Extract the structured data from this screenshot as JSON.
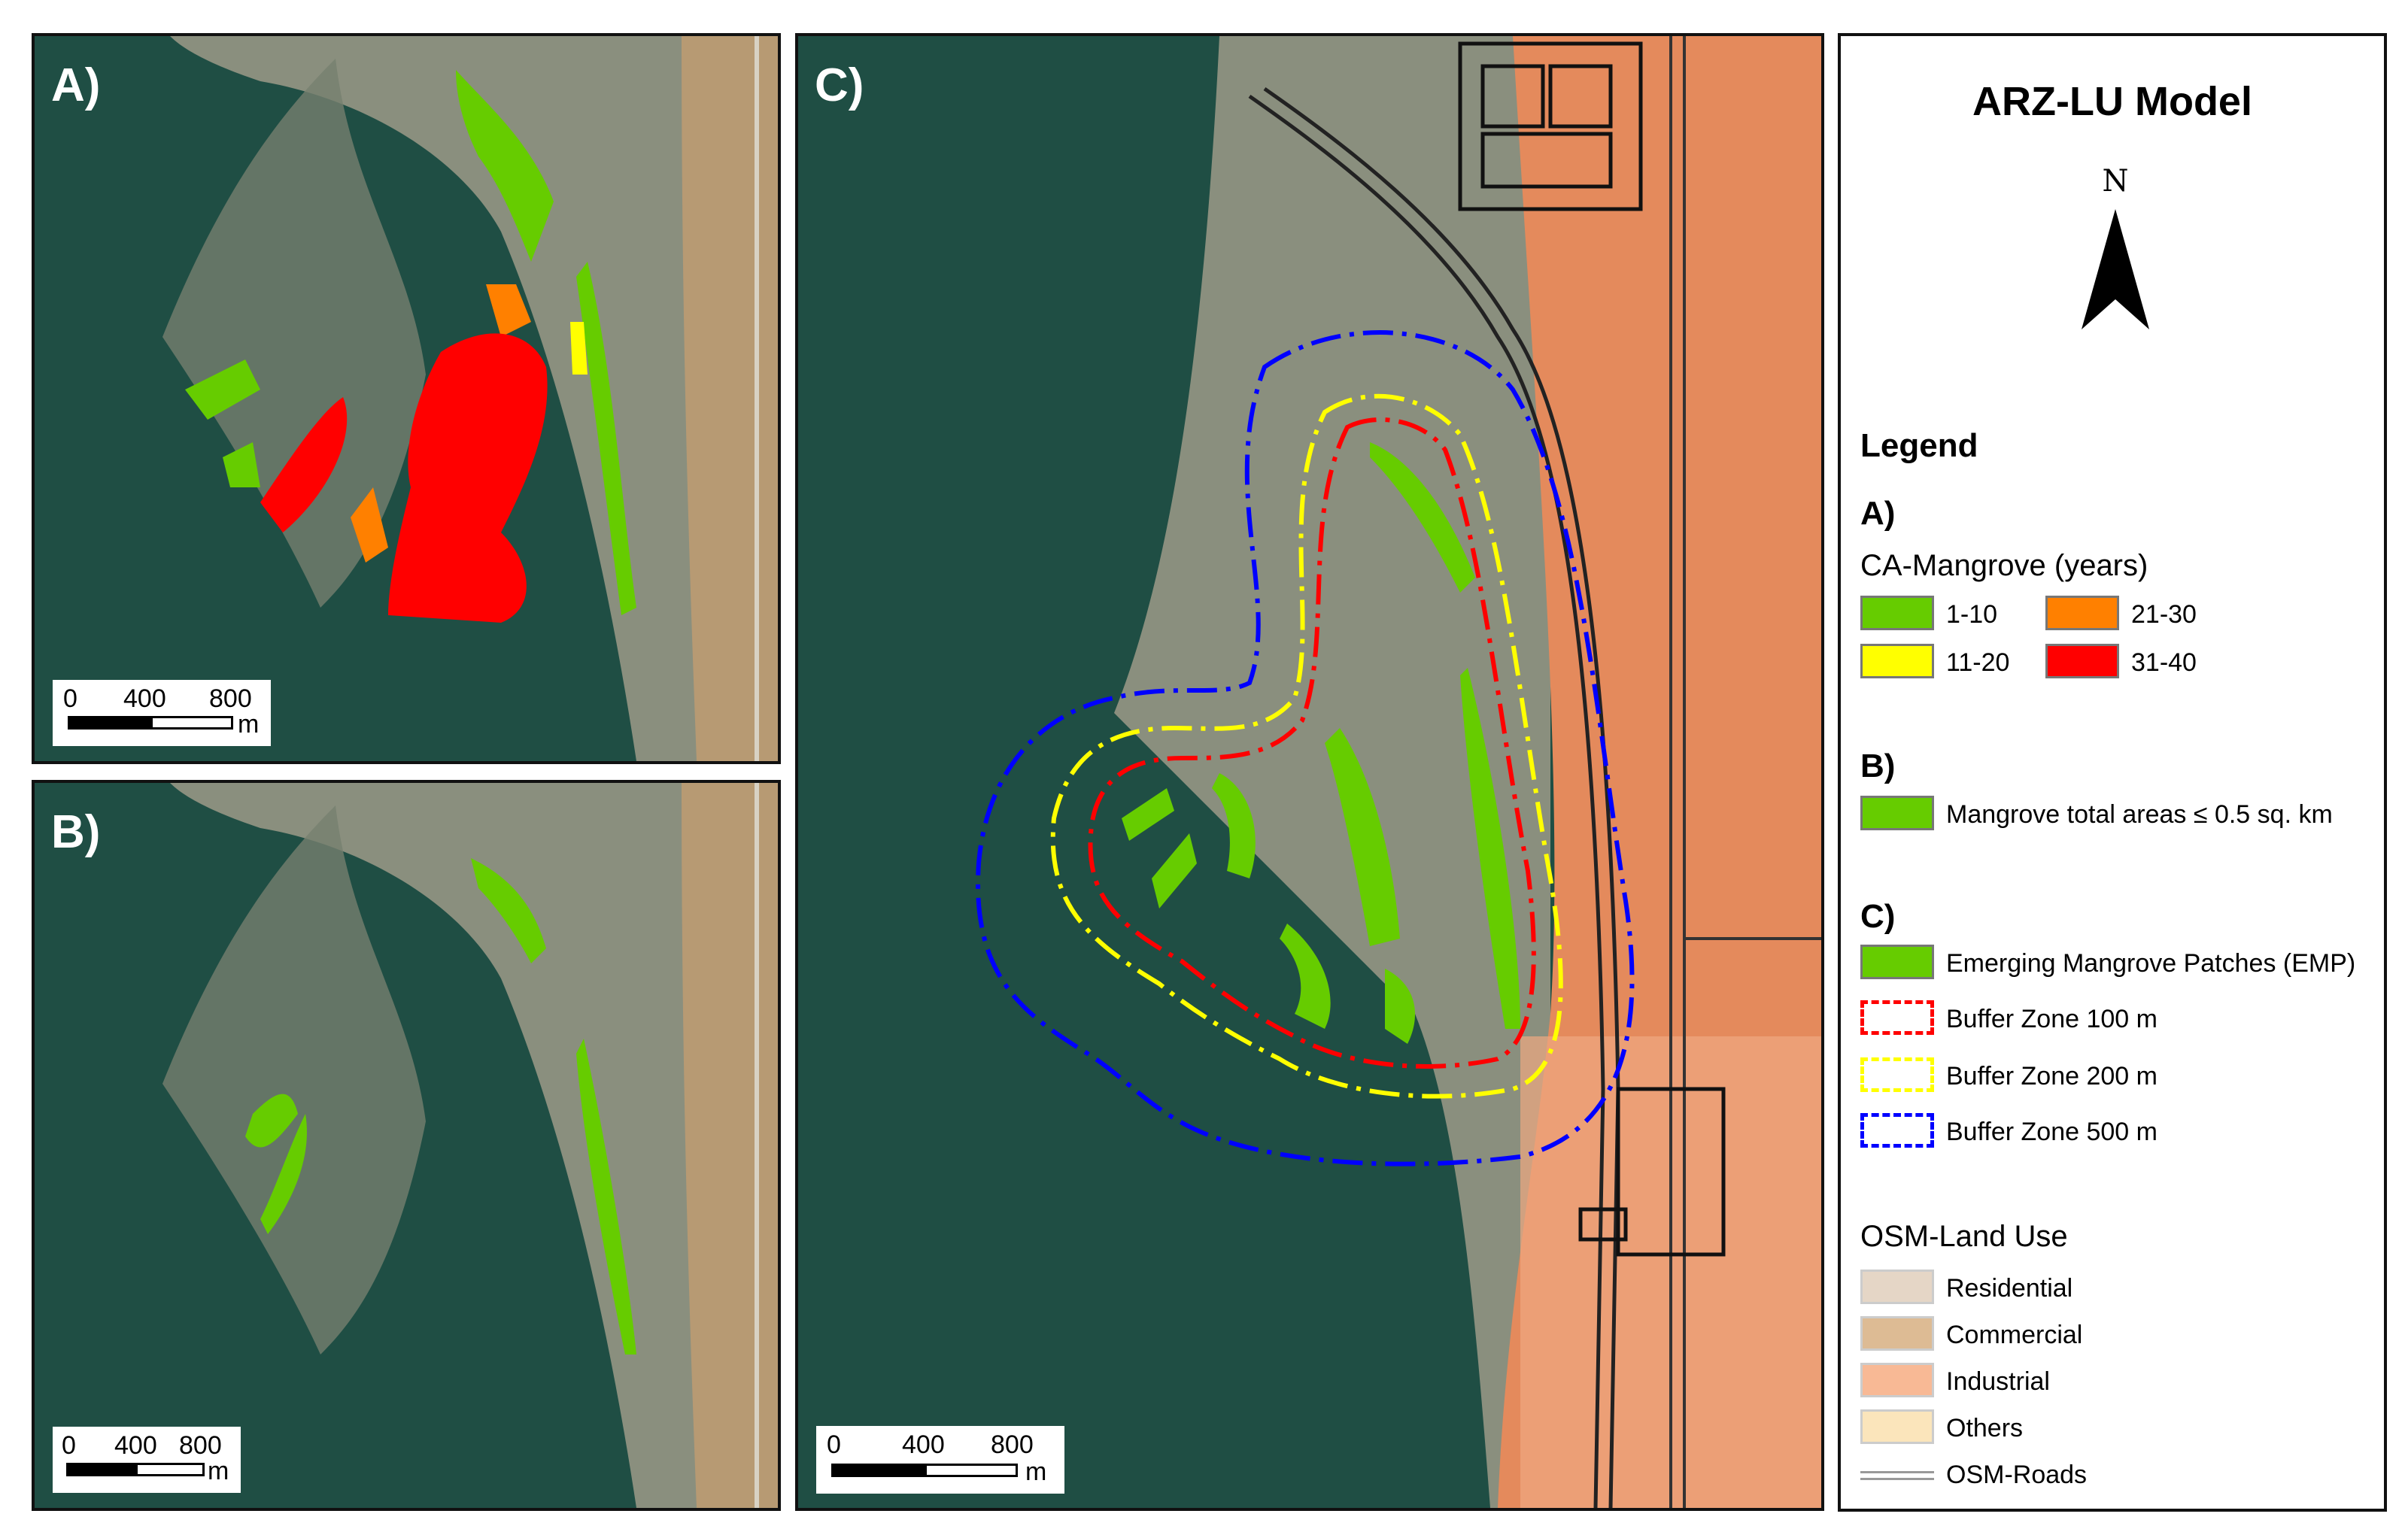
{
  "panels": {
    "a": {
      "label": "A)"
    },
    "b": {
      "label": "B)"
    },
    "c": {
      "label": "C)"
    }
  },
  "scalebar": {
    "ticks": [
      "0",
      "400",
      "800"
    ],
    "unit": "m"
  },
  "legend": {
    "title": "ARZ-LU Model",
    "north": "N",
    "heading": "Legend",
    "section_a": {
      "label": "A)",
      "subtitle": "CA-Mangrove (years)",
      "items": [
        {
          "label": "1-10",
          "color": "#66cc00"
        },
        {
          "label": "21-30",
          "color": "#ff8000"
        },
        {
          "label": "11-20",
          "color": "#ffff00"
        },
        {
          "label": "31-40",
          "color": "#ff0000"
        }
      ]
    },
    "section_b": {
      "label": "B)",
      "items": [
        {
          "label": "Mangrove total areas ≤ 0.5 sq. km",
          "color": "#66cc00"
        }
      ]
    },
    "section_c": {
      "label": "C)",
      "items": [
        {
          "label": "Emerging Mangrove Patches (EMP)",
          "color": "#66cc00"
        },
        {
          "label": "Buffer Zone 100 m",
          "color": "#ff0000"
        },
        {
          "label": "Buffer Zone 200 m",
          "color": "#ffff00"
        },
        {
          "label": "Buffer Zone 500 m",
          "color": "#0000ff"
        }
      ]
    },
    "osm": {
      "subtitle": "OSM-Land Use",
      "items": [
        {
          "label": "Residential",
          "color": "#e5d6c6"
        },
        {
          "label": "Commercial",
          "color": "#ddbb94"
        },
        {
          "label": "Industrial",
          "color": "#f8b995"
        },
        {
          "label": "Others",
          "color": "#fbe5bb"
        }
      ],
      "roads_label": "OSM-Roads"
    }
  }
}
